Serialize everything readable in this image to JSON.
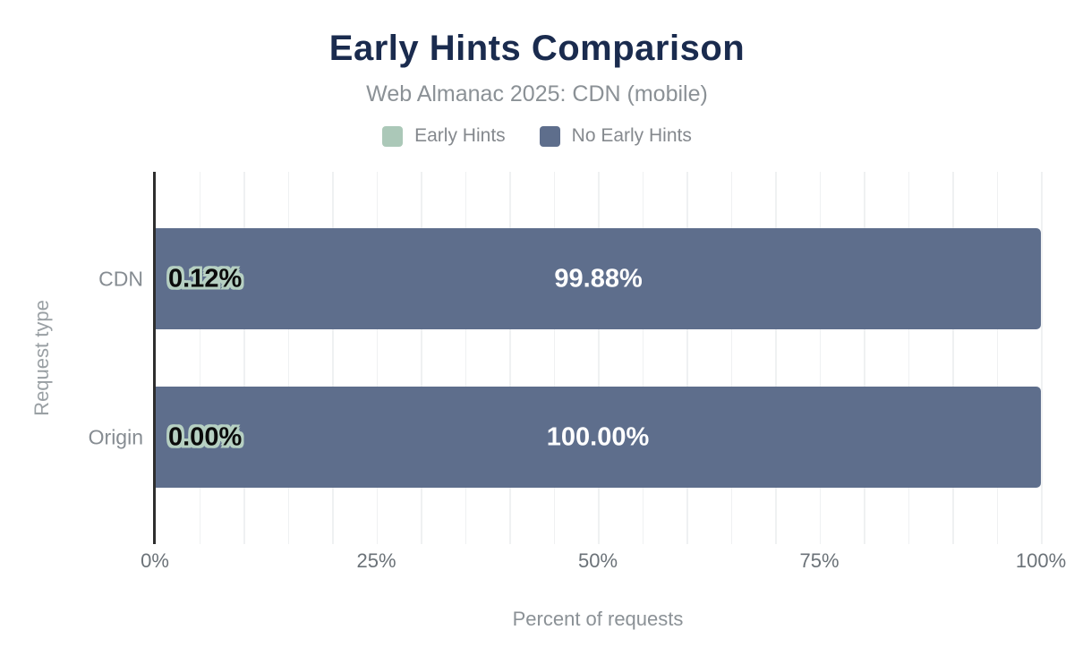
{
  "header": {
    "title": "Early Hints Comparison",
    "subtitle": "Web Almanac 2025: CDN (mobile)"
  },
  "legend": [
    {
      "label": "Early Hints",
      "color": "#abc8b8"
    },
    {
      "label": "No Early Hints",
      "color": "#5e6e8c"
    }
  ],
  "chart_data": {
    "type": "bar",
    "orientation": "horizontal",
    "stacked": true,
    "title": "Early Hints Comparison",
    "subtitle": "Web Almanac 2025: CDN (mobile)",
    "categories": [
      "CDN",
      "Origin"
    ],
    "series": [
      {
        "name": "Early Hints",
        "color": "#abc8b8",
        "values": [
          0.12,
          0.0
        ],
        "labels": [
          "0.12%",
          "0.00%"
        ]
      },
      {
        "name": "No Early Hints",
        "color": "#5e6e8c",
        "values": [
          99.88,
          100.0
        ],
        "labels": [
          "99.88%",
          "100.00%"
        ]
      }
    ],
    "xlabel": "Percent of requests",
    "ylabel": "Request type",
    "xlim": [
      0,
      100
    ],
    "x_ticks": [
      {
        "value": 0,
        "label": "0%"
      },
      {
        "value": 25,
        "label": "25%"
      },
      {
        "value": 50,
        "label": "50%"
      },
      {
        "value": 75,
        "label": "75%"
      },
      {
        "value": 100,
        "label": "100%"
      }
    ],
    "grid": {
      "on": true,
      "minor_step_percent": 5
    },
    "legend_position": "top"
  },
  "colors": {
    "title": "#1a2b4e",
    "subtitle_text": "#8b9196",
    "axis_line": "#2e2e2e",
    "gridline": "#eff1f2",
    "bar_center_label": "#ffffff",
    "small_value_label_fill": "#0b0b0b",
    "small_value_label_outline": "#b6d0c2"
  }
}
